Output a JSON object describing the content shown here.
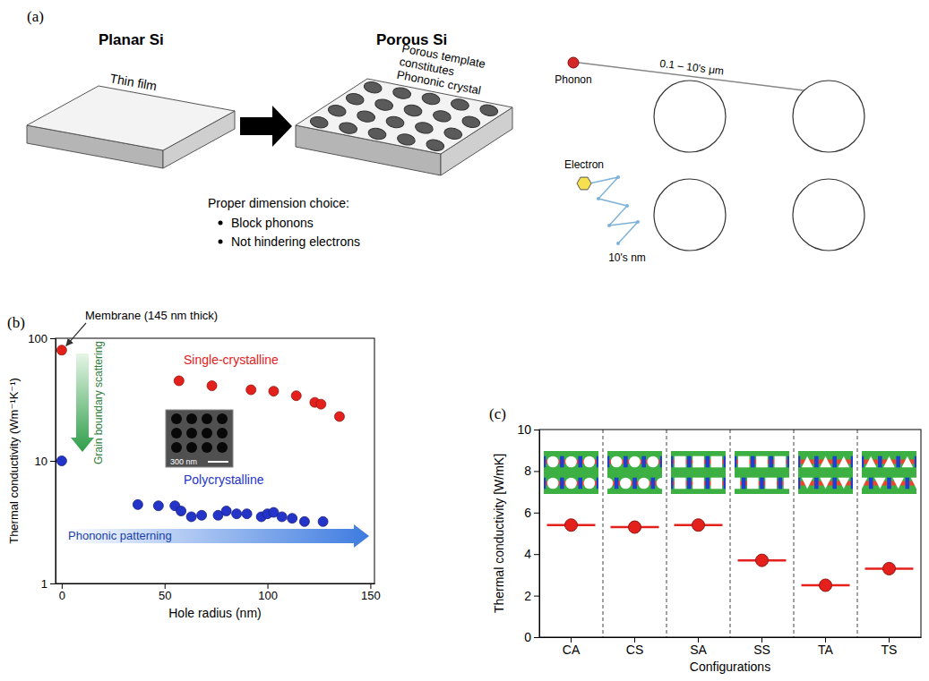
{
  "diagram": {
    "panel_label": "(a)",
    "left_title": "Planar Si",
    "right_title": "Porous Si",
    "film_label": "Thin film",
    "template_label": [
      "Porous template",
      "constitutes",
      "Phononic crystal"
    ],
    "dimension_heading": "Proper dimension choice:",
    "bullets": [
      "Block phonons",
      "Not hindering electrons"
    ],
    "phonon_label": "Phonon",
    "phonon_distance": "0.1 – 10's μm",
    "electron_label": "Electron",
    "electron_distance": "10's nm"
  },
  "chart_data": [
    {
      "type": "scatter",
      "panel_label": "(b)",
      "x_label": "Hole radius (nm)",
      "y_label": "Thermal conductivity (Wm⁻¹K⁻¹)",
      "log": "y",
      "xlim": [
        -3,
        152
      ],
      "xticks": [
        0,
        50,
        100,
        150
      ],
      "ylim": [
        1,
        100
      ],
      "yticks": [
        1,
        10,
        100
      ],
      "series": [
        {
          "name": "Single-crystalline",
          "color": "#e3201b",
          "marker": "circle",
          "x": [
            0,
            57,
            73,
            92,
            103,
            114,
            123,
            126,
            135
          ],
          "values": [
            80,
            45,
            41,
            38,
            37,
            34,
            30,
            29,
            23
          ]
        },
        {
          "name": "Polycrystalline",
          "color": "#2433c8",
          "marker": "circle",
          "x": [
            0,
            37,
            47,
            55,
            58,
            63,
            68,
            76,
            80,
            85,
            90,
            97,
            100,
            103,
            107,
            112,
            118,
            127
          ],
          "values": [
            10,
            4.4,
            4.3,
            4.3,
            3.9,
            3.5,
            3.6,
            3.6,
            3.9,
            3.7,
            3.7,
            3.5,
            3.7,
            3.8,
            3.5,
            3.4,
            3.2,
            3.2
          ]
        }
      ],
      "annotations": [
        "Membrane (145 nm thick)",
        "Grain boundary scattering",
        "Phononic patterning",
        "300 nm"
      ]
    },
    {
      "type": "scatter",
      "panel_label": "(c)",
      "x_label": "Configurations",
      "y_label": "Thermal conductivity [W/mK]",
      "categories": [
        "CA",
        "CS",
        "SA",
        "SS",
        "TA",
        "TS"
      ],
      "values": [
        5.4,
        5.3,
        5.4,
        3.7,
        2.5,
        3.3
      ],
      "color": "#e3201b",
      "marker": "circle",
      "ylim": [
        0,
        10
      ],
      "yticks": [
        0,
        2,
        4,
        6,
        8,
        10
      ]
    }
  ]
}
